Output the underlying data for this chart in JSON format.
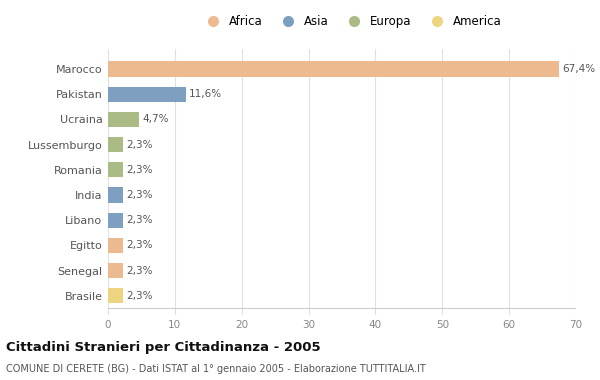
{
  "categories": [
    "Marocco",
    "Pakistan",
    "Ucraina",
    "Lussemburgo",
    "Romania",
    "India",
    "Libano",
    "Egitto",
    "Senegal",
    "Brasile"
  ],
  "values": [
    67.4,
    11.6,
    4.7,
    2.3,
    2.3,
    2.3,
    2.3,
    2.3,
    2.3,
    2.3
  ],
  "labels": [
    "67,4%",
    "11,6%",
    "4,7%",
    "2,3%",
    "2,3%",
    "2,3%",
    "2,3%",
    "2,3%",
    "2,3%",
    "2,3%"
  ],
  "colors": [
    "#EDBA8F",
    "#7E9FBF",
    "#AABB86",
    "#AABB86",
    "#AABB86",
    "#7E9FBF",
    "#7E9FBF",
    "#EDBA8F",
    "#EDBA8F",
    "#EDD580"
  ],
  "continent": [
    "Africa",
    "Asia",
    "Europa",
    "Europa",
    "Europa",
    "Asia",
    "Asia",
    "Africa",
    "Africa",
    "America"
  ],
  "legend_labels": [
    "Africa",
    "Asia",
    "Europa",
    "America"
  ],
  "legend_colors": [
    "#EDBA8F",
    "#7E9FBF",
    "#AABB86",
    "#EDD580"
  ],
  "xlim": [
    0,
    70
  ],
  "xticks": [
    0,
    10,
    20,
    30,
    40,
    50,
    60,
    70
  ],
  "title": "Cittadini Stranieri per Cittadinanza - 2005",
  "subtitle": "COMUNE DI CERETE (BG) - Dati ISTAT al 1° gennaio 2005 - Elaborazione TUTTITALIA.IT",
  "background_color": "#ffffff",
  "bar_height": 0.6
}
